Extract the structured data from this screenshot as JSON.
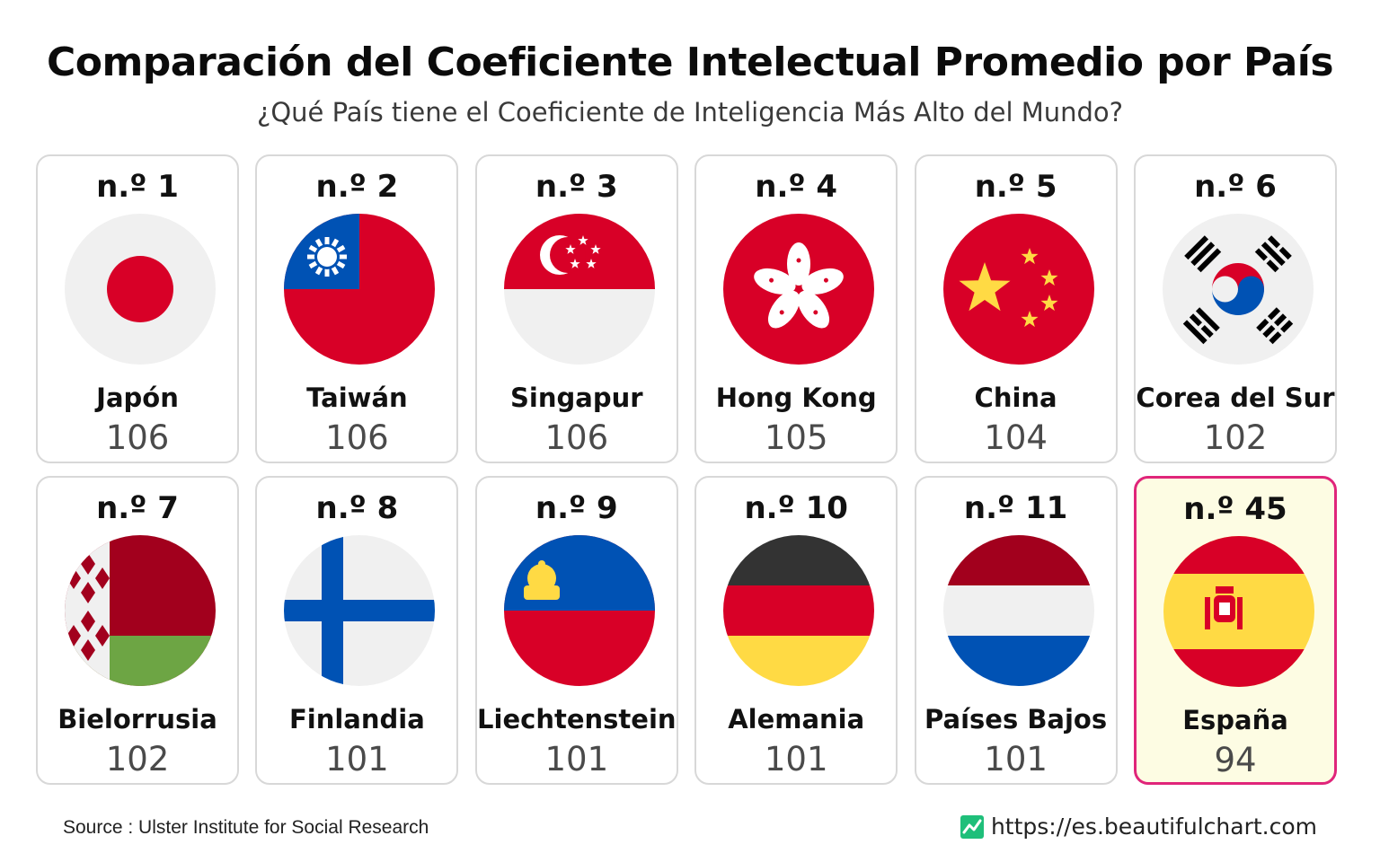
{
  "title": "Comparación del Coeficiente Intelectual Promedio por País",
  "subtitle": "¿Qué País tiene el Coeficiente de Inteligencia Más Alto del Mundo?",
  "chart_data": {
    "type": "table",
    "title": "Comparación del Coeficiente Intelectual Promedio por País",
    "subtitle": "¿Qué País tiene el Coeficiente de Inteligencia Más Alto del Mundo?",
    "highlight_color": "#e0257a",
    "rows": [
      {
        "rank": "n.º 1",
        "country": "Japón",
        "iq": 106,
        "flag": "japan-flag"
      },
      {
        "rank": "n.º 2",
        "country": "Taiwán",
        "iq": 106,
        "flag": "taiwan-flag"
      },
      {
        "rank": "n.º 3",
        "country": "Singapur",
        "iq": 106,
        "flag": "singapore-flag"
      },
      {
        "rank": "n.º 4",
        "country": "Hong Kong",
        "iq": 105,
        "flag": "hong-kong-flag"
      },
      {
        "rank": "n.º 5",
        "country": "China",
        "iq": 104,
        "flag": "china-flag"
      },
      {
        "rank": "n.º 6",
        "country": "Corea del Sur",
        "iq": 102,
        "flag": "south-korea-flag"
      },
      {
        "rank": "n.º 7",
        "country": "Bielorrusia",
        "iq": 102,
        "flag": "belarus-flag"
      },
      {
        "rank": "n.º 8",
        "country": "Finlandia",
        "iq": 101,
        "flag": "finland-flag"
      },
      {
        "rank": "n.º 9",
        "country": "Liechtenstein",
        "iq": 101,
        "flag": "liechtenstein-flag"
      },
      {
        "rank": "n.º 10",
        "country": "Alemania",
        "iq": 101,
        "flag": "germany-flag"
      },
      {
        "rank": "n.º 11",
        "country": "Países Bajos",
        "iq": 101,
        "flag": "netherlands-flag"
      },
      {
        "rank": "n.º 45",
        "country": "España",
        "iq": 94,
        "flag": "spain-flag",
        "highlighted": true
      }
    ]
  },
  "footer": {
    "source": "Source : Ulster Institute for Social Research",
    "site": "https://es.beautifulchart.com"
  }
}
